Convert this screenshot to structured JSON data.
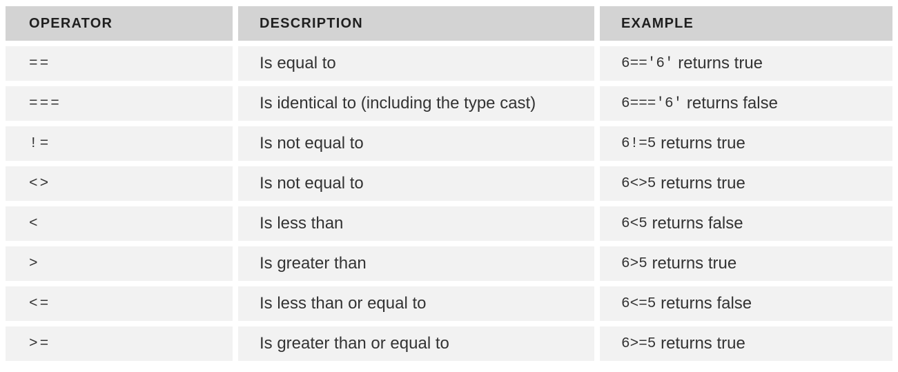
{
  "headers": {
    "operator": "OPERATOR",
    "description": "DESCRIPTION",
    "example": "EXAMPLE"
  },
  "rows": [
    {
      "operator": "==",
      "description": "Is equal to",
      "example_code": "6=='6'",
      "example_text": " returns true"
    },
    {
      "operator": "===",
      "description": "Is identical to (including the type cast)",
      "example_code": "6==='6'",
      "example_text": " returns false"
    },
    {
      "operator": "!=",
      "description": "Is not equal to",
      "example_code": "6!=5",
      "example_text": " returns true"
    },
    {
      "operator": "<>",
      "description": "Is not equal to",
      "example_code": "6<>5",
      "example_text": " returns true"
    },
    {
      "operator": "<",
      "description": "Is less than",
      "example_code": "6<5",
      "example_text": " returns false"
    },
    {
      "operator": ">",
      "description": "Is greater than",
      "example_code": "6>5",
      "example_text": " returns true"
    },
    {
      "operator": "<=",
      "description": "Is less than or equal to",
      "example_code": "6<=5",
      "example_text": " returns false"
    },
    {
      "operator": ">=",
      "description": "Is greater than or equal to",
      "example_code": "6>=5",
      "example_text": " returns true"
    }
  ],
  "colors": {
    "header_bg": "#d3d3d3",
    "cell_bg": "#f2f2f2",
    "text": "#333333"
  }
}
